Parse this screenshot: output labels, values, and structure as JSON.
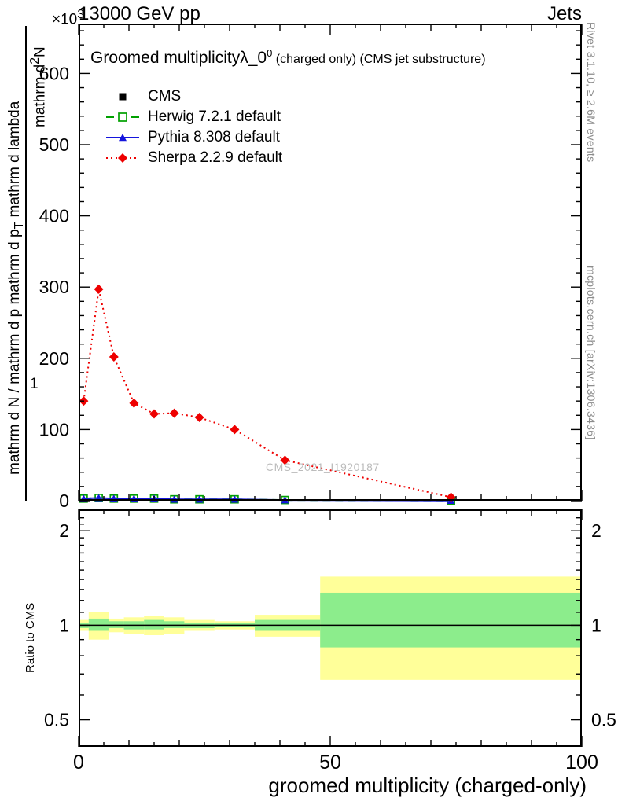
{
  "header": {
    "exponent_base": "×10",
    "exponent_power": "3",
    "collision": "13000 GeV pp",
    "analysis": "Jets"
  },
  "plot_title": {
    "main": "Groomed multiplicity",
    "lambda": "λ_0",
    "sup": "0",
    "suffix": " (charged only) (CMS jet substructure)"
  },
  "legend": {
    "items": [
      {
        "label": "CMS"
      },
      {
        "label": "Herwig 7.2.1 default"
      },
      {
        "label": "Pythia 8.308 default"
      },
      {
        "label": "Sherpa 2.2.9 default"
      }
    ]
  },
  "y_axis_label": {
    "numerator_pre": "mathrm d",
    "numerator_sup": "2",
    "numerator_post": "N",
    "one": "1",
    "denominator_pre": "mathrm d N / mathrm d p mathrm d p",
    "denominator_sub": "T",
    "denominator_post": " mathrm d lambda"
  },
  "ratio_label": "Ratio to CMS",
  "x_axis_label": "groomed multiplicity (charged-only)",
  "watermark": "CMS_2021_I1920187",
  "side_notes": {
    "right_top": "Rivet 3.1.10, ≥ 2.6M events",
    "right_bottom": "mcplots.cern.ch [arXiv:1306.3436]"
  },
  "colors": {
    "cms": "#000000",
    "herwig": "#00a000",
    "pythia": "#1515dd",
    "sherpa": "#ee0000",
    "band_yellow": "#ffff99",
    "band_green": "#8ced8c",
    "frame": "#000000"
  },
  "chart_data": [
    {
      "type": "line",
      "title": "Groomed multiplicity λ_0^0 (charged only) (CMS jet substructure)",
      "xlabel": "groomed multiplicity (charged-only)",
      "ylabel": "mathrm d^2 N / mathrm d N mathrm d p mathrm d p_T mathrm d lambda (×10^3)",
      "xlim": [
        0,
        100
      ],
      "ylim": [
        0,
        670
      ],
      "xticks": [
        0,
        50,
        100
      ],
      "yticks": [
        0,
        100,
        200,
        300,
        400,
        500,
        600
      ],
      "x": [
        1,
        4,
        7,
        11,
        15,
        19,
        24,
        31,
        41,
        74
      ],
      "series": [
        {
          "name": "CMS",
          "marker": "square-filled",
          "color_key": "cms",
          "line": "none",
          "y": [
            3,
            4,
            3,
            3,
            3,
            2,
            2,
            2,
            1,
            0.3
          ]
        },
        {
          "name": "Herwig 7.2.1 default",
          "marker": "square-open",
          "color_key": "herwig",
          "line": "dashed",
          "y": [
            3,
            4,
            3,
            3,
            3,
            2,
            2,
            2,
            1,
            0.3
          ]
        },
        {
          "name": "Pythia 8.308 default",
          "marker": "triangle-filled",
          "color_key": "pythia",
          "line": "solid",
          "y": [
            3,
            4,
            3,
            3,
            3,
            2,
            2,
            2,
            1,
            0.3
          ]
        },
        {
          "name": "Sherpa 2.2.9 default",
          "marker": "diamond-filled",
          "color_key": "sherpa",
          "line": "dotted",
          "y": [
            140,
            297,
            202,
            137,
            122,
            123,
            117,
            100,
            57,
            5
          ]
        }
      ]
    },
    {
      "type": "ratio-bands",
      "ylabel": "Ratio to CMS",
      "yscale": "log",
      "xlim": [
        0,
        100
      ],
      "ylim": [
        0.41,
        2.34
      ],
      "yticks": [
        0.5,
        1,
        2
      ],
      "yticks_minor": [
        0.6,
        0.7,
        0.8,
        0.9,
        1.1,
        1.2,
        1.3,
        1.4,
        1.5,
        1.6,
        1.7,
        1.8,
        1.9,
        2.1,
        2.2
      ],
      "xticks": [
        0,
        50,
        100
      ],
      "reference_line": 1,
      "bins": [
        {
          "x0": 0,
          "x1": 2,
          "yellow": [
            0.96,
            1.04
          ],
          "green": [
            0.98,
            1.02
          ]
        },
        {
          "x0": 2,
          "x1": 6,
          "yellow": [
            0.9,
            1.1
          ],
          "green": [
            0.96,
            1.05
          ]
        },
        {
          "x0": 6,
          "x1": 9,
          "yellow": [
            0.95,
            1.05
          ],
          "green": [
            0.98,
            1.03
          ]
        },
        {
          "x0": 9,
          "x1": 13,
          "yellow": [
            0.94,
            1.06
          ],
          "green": [
            0.97,
            1.03
          ]
        },
        {
          "x0": 13,
          "x1": 17,
          "yellow": [
            0.93,
            1.07
          ],
          "green": [
            0.97,
            1.04
          ]
        },
        {
          "x0": 17,
          "x1": 21,
          "yellow": [
            0.94,
            1.06
          ],
          "green": [
            0.98,
            1.03
          ]
        },
        {
          "x0": 21,
          "x1": 27,
          "yellow": [
            0.96,
            1.04
          ],
          "green": [
            0.98,
            1.02
          ]
        },
        {
          "x0": 27,
          "x1": 35,
          "yellow": [
            0.97,
            1.03
          ],
          "green": [
            0.99,
            1.02
          ]
        },
        {
          "x0": 35,
          "x1": 48,
          "yellow": [
            0.92,
            1.08
          ],
          "green": [
            0.96,
            1.04
          ]
        },
        {
          "x0": 48,
          "x1": 100,
          "yellow": [
            0.67,
            1.43
          ],
          "green": [
            0.85,
            1.27
          ]
        }
      ]
    }
  ]
}
